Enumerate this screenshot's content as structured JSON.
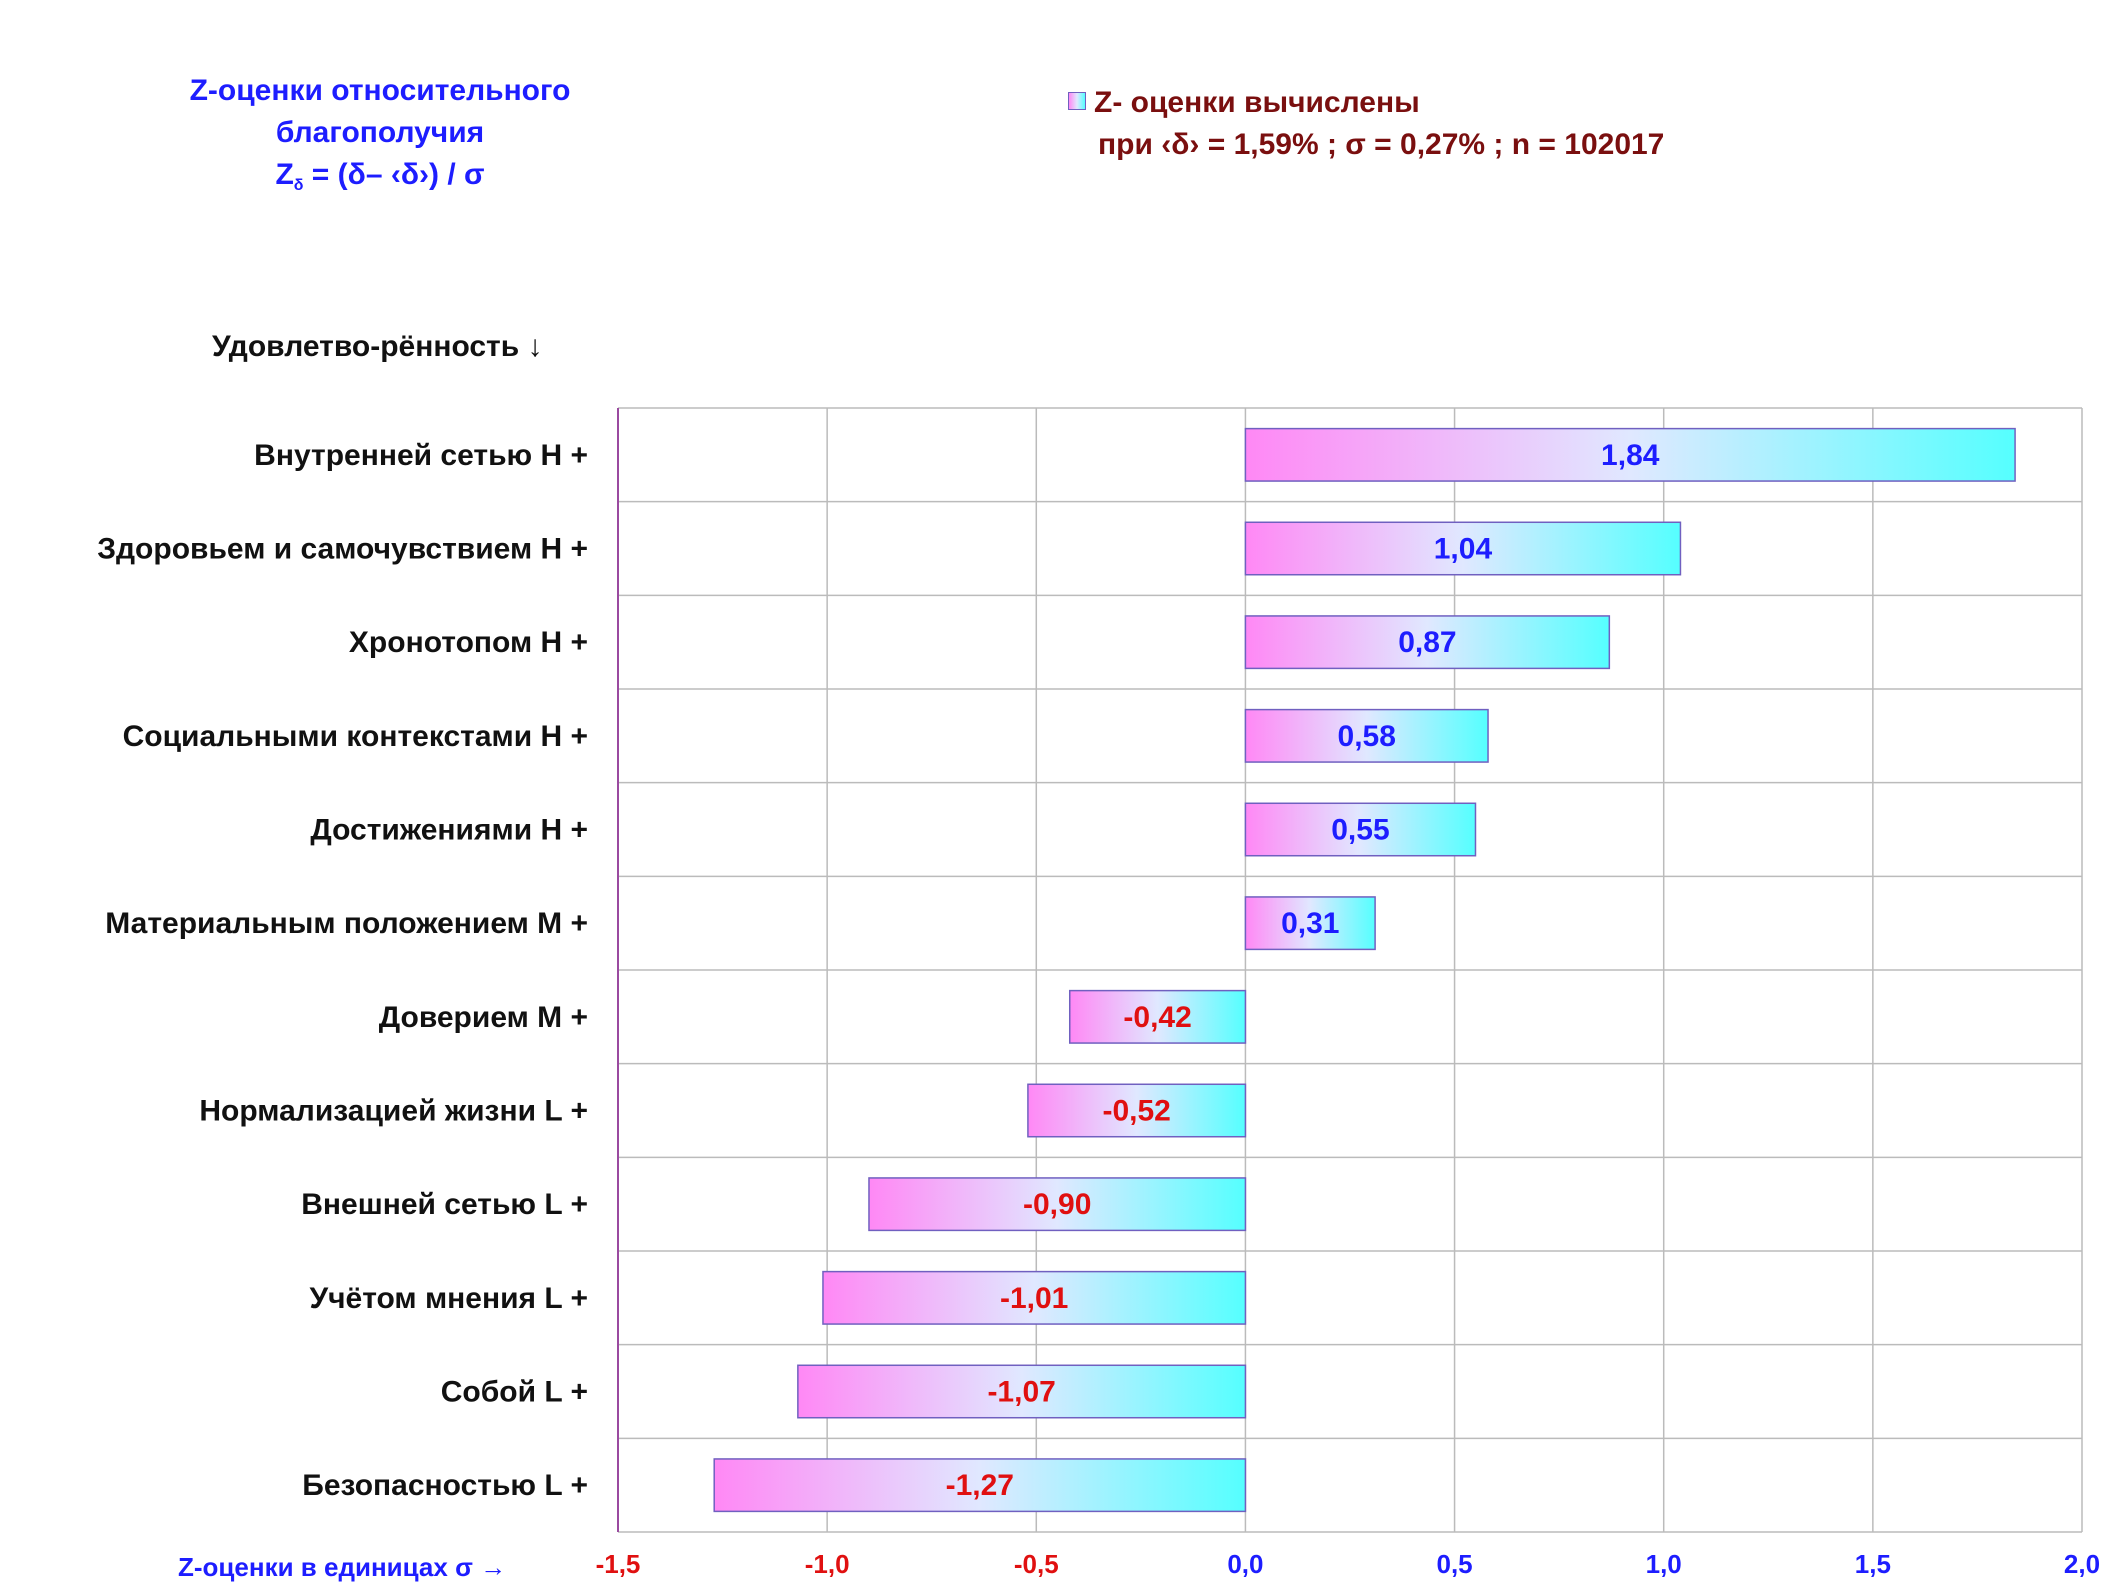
{
  "title": {
    "line1": "Z-оценки  относительного",
    "line2": "благополучия",
    "formula_z": "Z",
    "formula_sub": "δ",
    "formula_rest": " = (δ",
    "formula_rest2": "– ‹δ",
    "formula_rest3": "›)  / σ"
  },
  "legend": {
    "line1": "Z- оценки вычислены",
    "line2": "при ‹δ› = 1,59% ; σ = 0,27% ; n = 102017"
  },
  "category_header": "Удовлетво-рённость ↓",
  "x_axis_label": "Z-оценки в единицах σ →",
  "colors": {
    "positive_label": "#1d1dff",
    "negative_label": "#e01010",
    "bar_left": "#ff88f5",
    "bar_mid": "#e0e8ff",
    "bar_right": "#55ffff",
    "bar_border": "#7060c0",
    "grid": "#bbbbbb",
    "axis": "#9a4aa0"
  },
  "chart_data": {
    "type": "bar",
    "orientation": "horizontal",
    "categories": [
      "Внутренней сетью  H +",
      "Здоровьем и самочувствием  H +",
      "Хронотопом  H +",
      "Социальными контекстами  H +",
      "Достижениями  H +",
      "Материальным положением  M +",
      "Доверием  M +",
      "Нормализацией жизни  L +",
      "Внешней сетью  L +",
      "Учётом мнения  L +",
      "Собой  L +",
      "Безопасностью  L +"
    ],
    "values": [
      1.84,
      1.04,
      0.87,
      0.58,
      0.55,
      0.31,
      -0.42,
      -0.52,
      -0.9,
      -1.01,
      -1.07,
      -1.27
    ],
    "value_labels": [
      "1,84",
      "1,04",
      "0,87",
      "0,58",
      "0,55",
      "0,31",
      "-0,42",
      "-0,52",
      "-0,90",
      "-1,01",
      "-1,07",
      "-1,27"
    ],
    "xlim": [
      -1.5,
      2.0
    ],
    "xticks": [
      -1.5,
      -1.0,
      -0.5,
      0.0,
      0.5,
      1.0,
      1.5,
      2.0
    ],
    "xtick_labels": [
      "-1,5",
      "-1,0",
      "-0,5",
      "0,0",
      "0,5",
      "1,0",
      "1,5",
      "2,0"
    ],
    "grid": true,
    "legend_position": "top-right"
  }
}
